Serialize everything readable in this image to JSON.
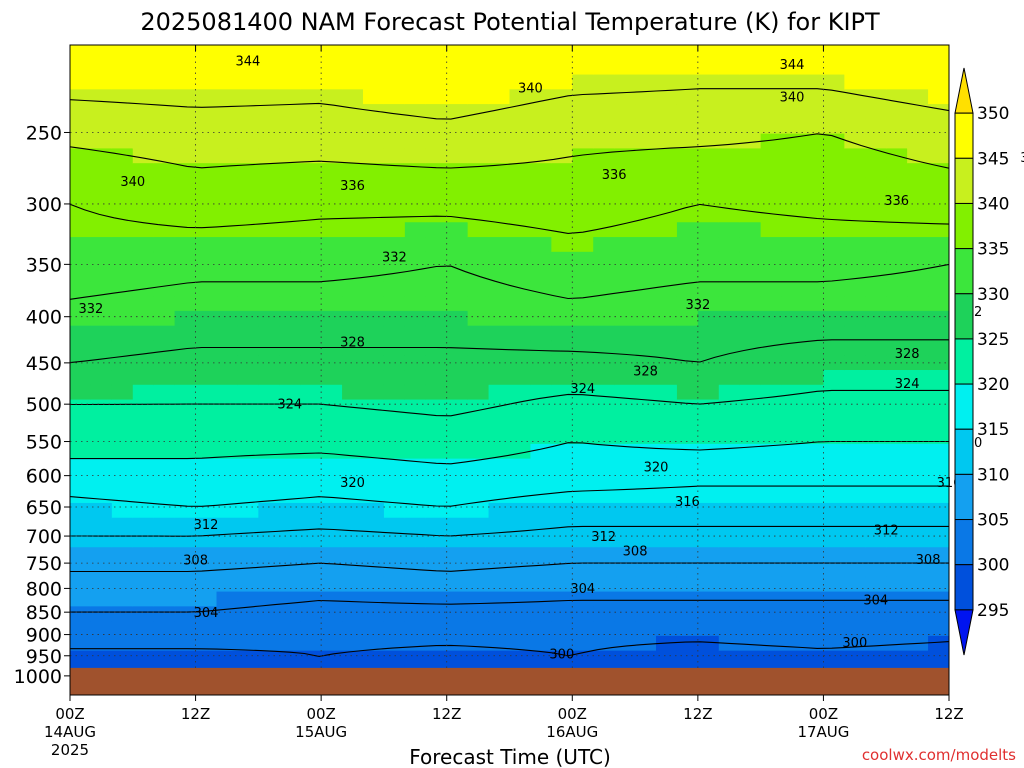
{
  "chart_data": {
    "type": "heatmap",
    "title": "2025081400 NAM Forecast Potential Temperature (K) for KIPT",
    "xlabel": "Forecast Time (UTC)",
    "ylabel": "",
    "credit": "coolwx.com/modelts",
    "y_scale": "log",
    "ylim": [
      1050,
      200
    ],
    "y_ticks": [
      250,
      300,
      350,
      400,
      450,
      500,
      550,
      600,
      650,
      700,
      750,
      800,
      850,
      900,
      950,
      1000
    ],
    "x_ticks": [
      {
        "hour": 0,
        "line1": "00Z",
        "line2": "14AUG",
        "line3": "2025"
      },
      {
        "hour": 12,
        "line1": "12Z",
        "line2": "",
        "line3": ""
      },
      {
        "hour": 24,
        "line1": "00Z",
        "line2": "15AUG",
        "line3": ""
      },
      {
        "hour": 36,
        "line1": "12Z",
        "line2": "",
        "line3": ""
      },
      {
        "hour": 48,
        "line1": "00Z",
        "line2": "16AUG",
        "line3": ""
      },
      {
        "hour": 60,
        "line1": "12Z",
        "line2": "",
        "line3": ""
      },
      {
        "hour": 72,
        "line1": "00Z",
        "line2": "17AUG",
        "line3": ""
      },
      {
        "hour": 84,
        "line1": "12Z",
        "line2": "",
        "line3": ""
      }
    ],
    "grid": "dotted",
    "colorbar": {
      "levels": [
        350,
        345,
        340,
        335,
        330,
        325,
        320,
        315,
        310,
        305,
        300,
        295
      ],
      "colors": [
        "#FFE000",
        "#FFFF00",
        "#C8F01E",
        "#82F000",
        "#3CE63C",
        "#1ED25A",
        "#00F0A0",
        "#00F0F0",
        "#00C8F0",
        "#14A0F0",
        "#0A78E6",
        "#0050DC",
        "#0014F0"
      ]
    },
    "ground_color": "#A0522D",
    "surface_pressure": 1000,
    "x": [
      0,
      12,
      24,
      36,
      48,
      60,
      72,
      84
    ],
    "levels_hpa": [
      200,
      250,
      300,
      350,
      400,
      450,
      500,
      550,
      600,
      650,
      700,
      750,
      800,
      850,
      900,
      950
    ],
    "theta_k": [
      [
        349,
        349,
        348,
        350,
        348,
        347,
        348,
        350
      ],
      [
        341,
        342,
        342,
        343,
        341,
        341,
        340,
        342
      ],
      [
        336,
        338,
        337,
        337,
        338,
        336,
        337,
        338
      ],
      [
        334,
        333,
        333,
        332,
        334,
        333,
        333,
        332
      ],
      [
        331,
        330,
        330,
        330,
        331,
        330,
        330,
        330
      ],
      [
        328,
        327,
        327,
        327,
        327,
        328,
        326,
        326
      ],
      [
        324,
        324,
        324,
        325,
        323,
        324,
        323,
        323
      ],
      [
        322,
        321,
        321,
        322,
        320,
        321,
        320,
        320
      ],
      [
        318,
        319,
        318,
        319,
        318,
        317,
        317,
        317
      ],
      [
        315,
        316,
        315,
        316,
        314,
        314,
        314,
        314
      ],
      [
        312,
        312,
        311,
        312,
        311,
        311,
        311,
        311
      ],
      [
        309,
        309,
        308,
        309,
        308,
        308,
        308,
        308
      ],
      [
        306,
        306,
        305,
        306,
        305,
        305,
        305,
        305
      ],
      [
        304,
        304,
        303,
        303,
        303,
        303,
        303,
        303
      ],
      [
        302,
        302,
        301,
        301,
        301,
        301,
        302,
        301
      ],
      [
        299,
        299,
        300,
        299,
        300,
        298,
        299,
        298
      ]
    ],
    "contour_labels": [
      {
        "value": "344",
        "hour": 17,
        "p": 208
      },
      {
        "value": "344",
        "hour": 69,
        "p": 210
      },
      {
        "value": "340",
        "hour": 44,
        "p": 223
      },
      {
        "value": "340",
        "hour": 69,
        "p": 228
      },
      {
        "value": "340",
        "hour": 6,
        "p": 283
      },
      {
        "value": "340",
        "hour": 92,
        "p": 266
      },
      {
        "value": "336",
        "hour": 27,
        "p": 286
      },
      {
        "value": "336",
        "hour": 52,
        "p": 278
      },
      {
        "value": "336",
        "hour": 79,
        "p": 297
      },
      {
        "value": "332",
        "hour": 31,
        "p": 343
      },
      {
        "value": "332",
        "hour": 60,
        "p": 387
      },
      {
        "value": "332",
        "hour": 86,
        "p": 394
      },
      {
        "value": "332",
        "hour": 2,
        "p": 391
      },
      {
        "value": "328",
        "hour": 27,
        "p": 426
      },
      {
        "value": "328",
        "hour": 55,
        "p": 459
      },
      {
        "value": "328",
        "hour": 80,
        "p": 439
      },
      {
        "value": "324",
        "hour": 21,
        "p": 499
      },
      {
        "value": "324",
        "hour": 49,
        "p": 480
      },
      {
        "value": "324",
        "hour": 80,
        "p": 474
      },
      {
        "value": "320",
        "hour": 27,
        "p": 610
      },
      {
        "value": "320",
        "hour": 56,
        "p": 586
      },
      {
        "value": "320",
        "hour": 86,
        "p": 551
      },
      {
        "value": "316",
        "hour": 59,
        "p": 640
      },
      {
        "value": "316",
        "hour": 84,
        "p": 610
      },
      {
        "value": "312",
        "hour": 13,
        "p": 679
      },
      {
        "value": "312",
        "hour": 51,
        "p": 700
      },
      {
        "value": "312",
        "hour": 78,
        "p": 688
      },
      {
        "value": "308",
        "hour": 12,
        "p": 743
      },
      {
        "value": "308",
        "hour": 54,
        "p": 726
      },
      {
        "value": "308",
        "hour": 82,
        "p": 742
      },
      {
        "value": "304",
        "hour": 13,
        "p": 850
      },
      {
        "value": "304",
        "hour": 49,
        "p": 799
      },
      {
        "value": "304",
        "hour": 77,
        "p": 823
      },
      {
        "value": "300",
        "hour": 47,
        "p": 944
      },
      {
        "value": "300",
        "hour": 75,
        "p": 917
      }
    ]
  }
}
